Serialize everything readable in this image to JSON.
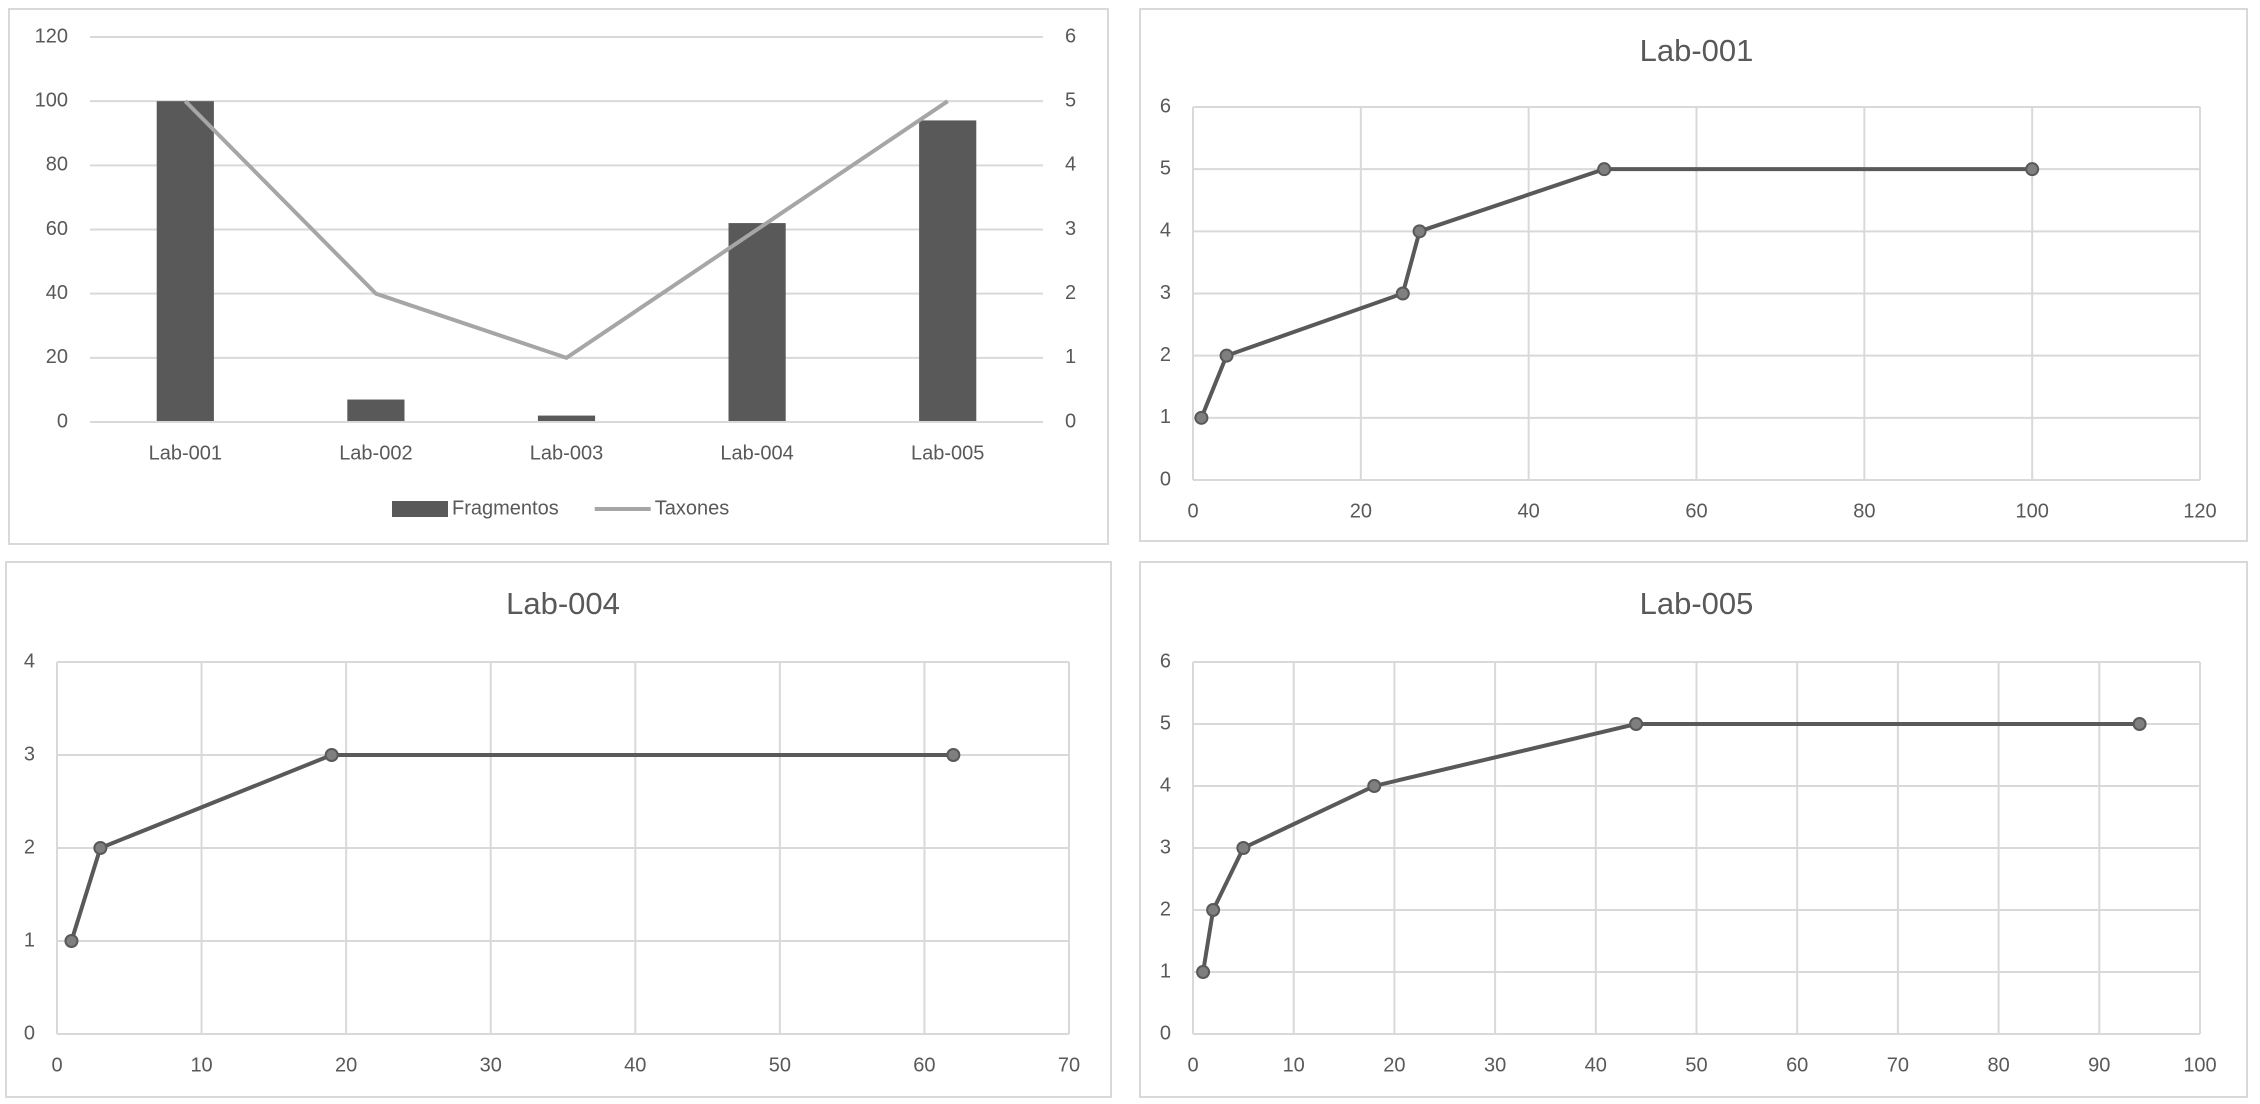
{
  "chart_data": [
    {
      "type": "combo",
      "categories": [
        "Lab-001",
        "Lab-002",
        "Lab-003",
        "Lab-004",
        "Lab-005"
      ],
      "series": [
        {
          "name": "Fragmentos",
          "kind": "bar",
          "color": "#595959",
          "values": [
            100,
            7,
            2,
            62,
            94
          ]
        },
        {
          "name": "Taxones",
          "kind": "line",
          "color": "#a6a6a6",
          "axis": "y2",
          "values": [
            5,
            2,
            1,
            3,
            5
          ]
        }
      ],
      "ylim": [
        0,
        120
      ],
      "yticks": [
        0,
        20,
        40,
        60,
        80,
        100,
        120
      ],
      "y2lim": [
        0,
        6
      ],
      "y2ticks": [
        0,
        1,
        2,
        3,
        4,
        5,
        6
      ],
      "grid": true,
      "legend": "bottom"
    },
    {
      "type": "line",
      "title": "Lab-001",
      "x": [
        1,
        4,
        25,
        27,
        49,
        100
      ],
      "series": [
        {
          "color": "#595959",
          "values": [
            1,
            2,
            3,
            4,
            5,
            5
          ]
        }
      ],
      "xlim": [
        0,
        120
      ],
      "xticks": [
        0,
        20,
        40,
        60,
        80,
        100,
        120
      ],
      "ylim": [
        0,
        6
      ],
      "yticks": [
        0,
        1,
        2,
        3,
        4,
        5,
        6
      ],
      "grid": true
    },
    {
      "type": "line",
      "title": "Lab-004",
      "x": [
        1,
        3,
        19,
        62
      ],
      "series": [
        {
          "color": "#595959",
          "values": [
            1,
            2,
            3,
            3
          ]
        }
      ],
      "xlim": [
        0,
        70
      ],
      "xticks": [
        0,
        10,
        20,
        30,
        40,
        50,
        60,
        70
      ],
      "ylim": [
        0,
        4
      ],
      "yticks": [
        0,
        1,
        2,
        3,
        4
      ],
      "grid": true
    },
    {
      "type": "line",
      "title": "Lab-005",
      "x": [
        1,
        2,
        5,
        18,
        44,
        94
      ],
      "series": [
        {
          "color": "#595959",
          "values": [
            1,
            2,
            3,
            4,
            5,
            5
          ]
        }
      ],
      "xlim": [
        0,
        100
      ],
      "xticks": [
        0,
        10,
        20,
        30,
        40,
        50,
        60,
        70,
        80,
        90,
        100
      ],
      "ylim": [
        0,
        6
      ],
      "yticks": [
        0,
        1,
        2,
        3,
        4,
        5,
        6
      ],
      "grid": true
    }
  ]
}
